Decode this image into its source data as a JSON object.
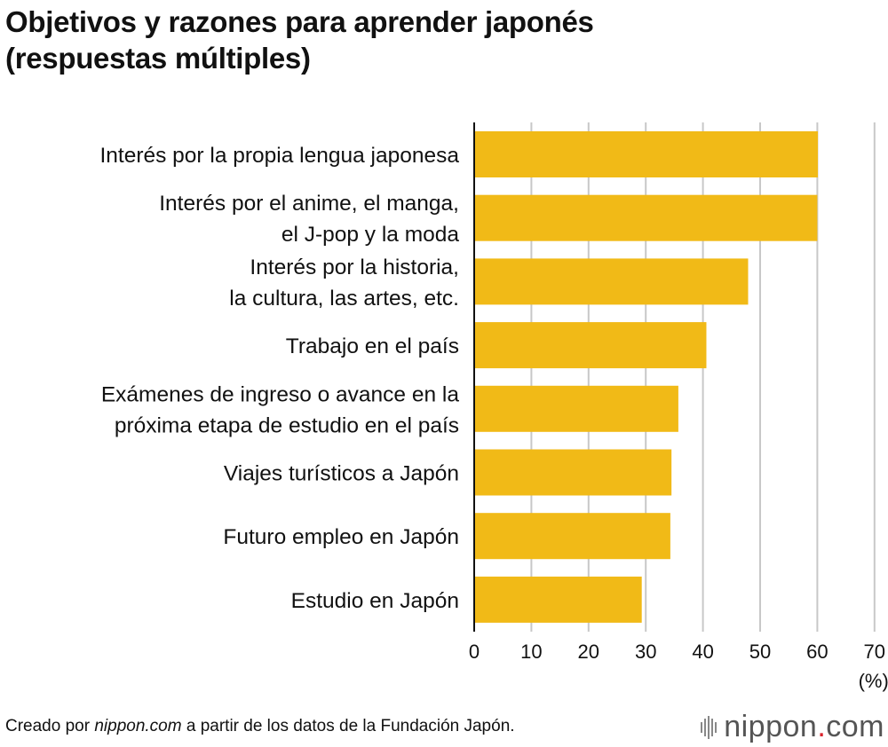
{
  "title_lines": [
    "Objetivos y razones para aprender japonés",
    "(respuestas múltiples)"
  ],
  "footer": {
    "prefix": "Creado por ",
    "source_site": "nippon.com",
    "suffix": " a partir de los datos de la Fundación Japón."
  },
  "brand": {
    "name": "nippon",
    "dot": ".",
    "tld": "com"
  },
  "colors": {
    "bar": "#f1ba17",
    "grid": "#c8c8c8",
    "axis": "#111111"
  },
  "chart_data": {
    "type": "bar",
    "orientation": "horizontal",
    "categories": [
      [
        "Interés por la propia lengua japonesa"
      ],
      [
        "Interés por el anime, el manga,",
        "el J-pop y la moda"
      ],
      [
        "Interés por la historia,",
        "la cultura, las artes, etc."
      ],
      [
        "Trabajo en el país"
      ],
      [
        "Exámenes de ingreso o avance en la",
        "próxima etapa de estudio en el país"
      ],
      [
        "Viajes turísticos a Japón"
      ],
      [
        "Futuro empleo en Japón"
      ],
      [
        "Estudio en Japón"
      ]
    ],
    "values": [
      60.1,
      60.0,
      47.9,
      40.6,
      35.7,
      34.5,
      34.3,
      29.3
    ],
    "xlim": [
      0,
      70
    ],
    "xticks": [
      "0",
      "10",
      "20",
      "30",
      "40",
      "50",
      "60",
      "70"
    ],
    "unit": "(%)",
    "grid": true
  }
}
